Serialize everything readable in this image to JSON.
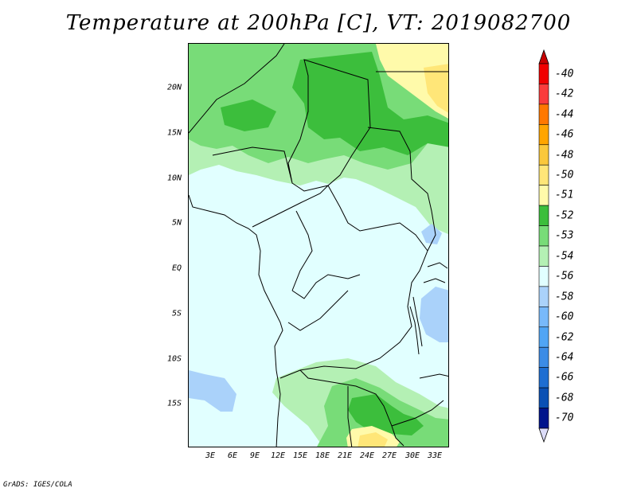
{
  "title": "Temperature at 200hPa [C], VT: 2019082700",
  "credit": "GrADS: IGES/COLA",
  "map": {
    "lat_labels": [
      "20N",
      "15N",
      "10N",
      "5N",
      "EQ",
      "5S",
      "10S",
      "15S"
    ],
    "lon_labels": [
      "3E",
      "6E",
      "9E",
      "12E",
      "15E",
      "18E",
      "21E",
      "24E",
      "27E",
      "30E",
      "33E"
    ]
  },
  "legend": {
    "labels": [
      "-40",
      "-42",
      "-44",
      "-46",
      "-48",
      "-50",
      "-51",
      "-52",
      "-53",
      "-54",
      "-56",
      "-58",
      "-60",
      "-62",
      "-64",
      "-66",
      "-68",
      "-70"
    ],
    "colors": [
      "#f00000",
      "#fa3c3c",
      "#ff7800",
      "#ffa500",
      "#fac83c",
      "#ffe678",
      "#fffaaa",
      "#3cbe3c",
      "#78dc78",
      "#b4f0b4",
      "#e1ffff",
      "#aad2fa",
      "#78b9fa",
      "#50a5f5",
      "#3c8ce6",
      "#1e6ed2",
      "#0a50b4",
      "#00148c"
    ],
    "top_cap_color": "#c80000",
    "bottom_cap_color": "#dcdcf8"
  }
}
